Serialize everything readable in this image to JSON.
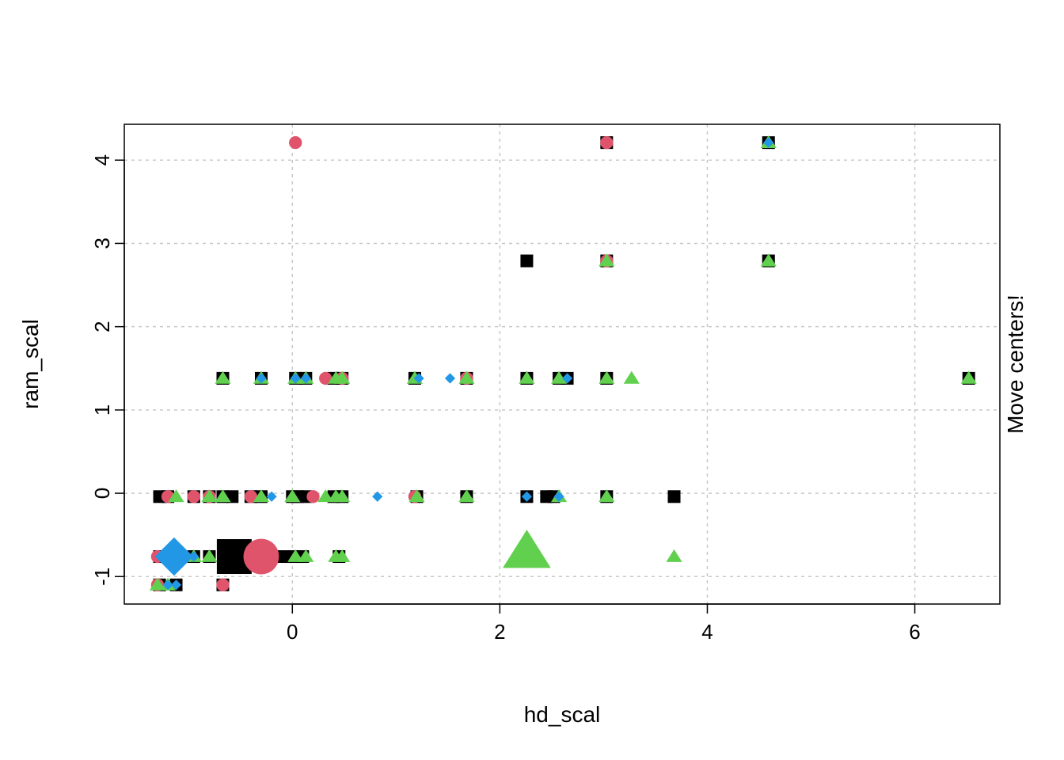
{
  "chart_data": {
    "type": "scatter",
    "title": "",
    "xlabel": "hd_scal",
    "ylabel": "ram_scal",
    "side_text": "Move centers!",
    "xlim": [
      -1.62,
      6.82
    ],
    "ylim": [
      -1.33,
      4.43
    ],
    "x_ticks": [
      0,
      2,
      4,
      6
    ],
    "y_ticks": [
      -1,
      0,
      1,
      2,
      3,
      4
    ],
    "grid": true,
    "legend": "none",
    "colors": {
      "cluster1": "#000000",
      "cluster2": "#DF536B",
      "cluster3": "#61D04F",
      "cluster4": "#2297E6"
    },
    "series": [
      {
        "color": "#000000",
        "marker": "square",
        "points": [
          [
            4.59,
            4.21
          ],
          [
            3.03,
            4.21
          ],
          [
            2.26,
            2.79
          ],
          [
            3.03,
            2.79
          ],
          [
            4.59,
            2.79
          ],
          [
            -0.67,
            1.38
          ],
          [
            -0.3,
            1.38
          ],
          [
            0.03,
            1.38
          ],
          [
            0.13,
            1.38
          ],
          [
            0.4,
            1.38
          ],
          [
            0.48,
            1.38
          ],
          [
            1.18,
            1.38
          ],
          [
            1.68,
            1.38
          ],
          [
            2.26,
            1.38
          ],
          [
            2.57,
            1.38
          ],
          [
            2.65,
            1.38
          ],
          [
            3.03,
            1.38
          ],
          [
            6.52,
            1.38
          ],
          [
            -1.28,
            -0.04
          ],
          [
            -1.2,
            -0.04
          ],
          [
            -0.95,
            -0.04
          ],
          [
            -0.8,
            -0.04
          ],
          [
            -0.67,
            -0.04
          ],
          [
            -0.58,
            -0.04
          ],
          [
            -0.4,
            -0.04
          ],
          [
            -0.3,
            -0.04
          ],
          [
            0.0,
            -0.04
          ],
          [
            0.05,
            -0.04
          ],
          [
            0.13,
            -0.04
          ],
          [
            0.4,
            -0.04
          ],
          [
            0.48,
            -0.04
          ],
          [
            1.2,
            -0.04
          ],
          [
            1.68,
            -0.04
          ],
          [
            2.26,
            -0.04
          ],
          [
            2.45,
            -0.04
          ],
          [
            2.52,
            -0.04
          ],
          [
            3.03,
            -0.04
          ],
          [
            3.68,
            -0.04
          ],
          [
            -1.28,
            -0.76
          ],
          [
            -0.95,
            -0.76
          ],
          [
            -0.8,
            -0.76
          ],
          [
            -0.08,
            -0.76
          ],
          [
            0.03,
            -0.76
          ],
          [
            0.1,
            -0.76
          ],
          [
            0.45,
            -0.76
          ],
          [
            -1.28,
            -1.1
          ],
          [
            -1.12,
            -1.1
          ],
          [
            -0.67,
            -1.1
          ]
        ]
      },
      {
        "color": "#DF536B",
        "marker": "circle",
        "points": [
          [
            0.03,
            4.21
          ],
          [
            3.03,
            4.21
          ],
          [
            3.03,
            2.79
          ],
          [
            0.32,
            1.38
          ],
          [
            0.48,
            1.38
          ],
          [
            1.68,
            1.38
          ],
          [
            -1.2,
            -0.04
          ],
          [
            -0.95,
            -0.04
          ],
          [
            -0.8,
            -0.04
          ],
          [
            -0.4,
            -0.04
          ],
          [
            0.2,
            -0.04
          ],
          [
            1.18,
            -0.04
          ],
          [
            -1.3,
            -0.76
          ],
          [
            -1.3,
            -1.1
          ],
          [
            -0.67,
            -1.1
          ]
        ]
      },
      {
        "color": "#61D04F",
        "marker": "triangle",
        "points": [
          [
            4.59,
            4.21
          ],
          [
            3.03,
            2.79
          ],
          [
            4.59,
            2.79
          ],
          [
            -0.67,
            1.38
          ],
          [
            -0.3,
            1.38
          ],
          [
            0.03,
            1.38
          ],
          [
            0.13,
            1.38
          ],
          [
            0.42,
            1.38
          ],
          [
            0.48,
            1.38
          ],
          [
            1.18,
            1.38
          ],
          [
            1.68,
            1.38
          ],
          [
            2.26,
            1.38
          ],
          [
            2.57,
            1.38
          ],
          [
            3.03,
            1.38
          ],
          [
            3.27,
            1.38
          ],
          [
            6.52,
            1.38
          ],
          [
            -1.12,
            -0.04
          ],
          [
            -0.8,
            -0.04
          ],
          [
            -0.67,
            -0.04
          ],
          [
            -0.3,
            -0.04
          ],
          [
            0.0,
            -0.04
          ],
          [
            0.32,
            -0.04
          ],
          [
            0.42,
            -0.04
          ],
          [
            0.48,
            -0.04
          ],
          [
            1.2,
            -0.04
          ],
          [
            1.68,
            -0.04
          ],
          [
            2.57,
            -0.04
          ],
          [
            3.03,
            -0.04
          ],
          [
            -0.95,
            -0.76
          ],
          [
            -0.8,
            -0.76
          ],
          [
            0.03,
            -0.76
          ],
          [
            0.13,
            -0.76
          ],
          [
            0.42,
            -0.76
          ],
          [
            0.48,
            -0.76
          ],
          [
            3.68,
            -0.76
          ],
          [
            -1.3,
            -1.1
          ],
          [
            -1.2,
            -1.1
          ]
        ]
      },
      {
        "color": "#2297E6",
        "marker": "diamond",
        "points": [
          [
            4.59,
            4.21
          ],
          [
            -0.3,
            1.38
          ],
          [
            0.03,
            1.38
          ],
          [
            0.13,
            1.38
          ],
          [
            1.22,
            1.38
          ],
          [
            1.52,
            1.38
          ],
          [
            2.65,
            1.38
          ],
          [
            -0.2,
            -0.04
          ],
          [
            0.82,
            -0.04
          ],
          [
            2.26,
            -0.04
          ],
          [
            2.57,
            -0.04
          ],
          [
            -1.2,
            -0.76
          ],
          [
            -0.95,
            -0.76
          ],
          [
            -1.2,
            -1.1
          ],
          [
            -1.12,
            -1.1
          ]
        ]
      }
    ],
    "centers": [
      {
        "x": -0.56,
        "y": -0.76,
        "color": "#000000",
        "marker": "square"
      },
      {
        "x": -0.3,
        "y": -0.76,
        "color": "#DF536B",
        "marker": "circle"
      },
      {
        "x": 2.26,
        "y": -0.7,
        "color": "#61D04F",
        "marker": "triangle"
      },
      {
        "x": -1.14,
        "y": -0.76,
        "color": "#2297E6",
        "marker": "diamond"
      }
    ]
  }
}
